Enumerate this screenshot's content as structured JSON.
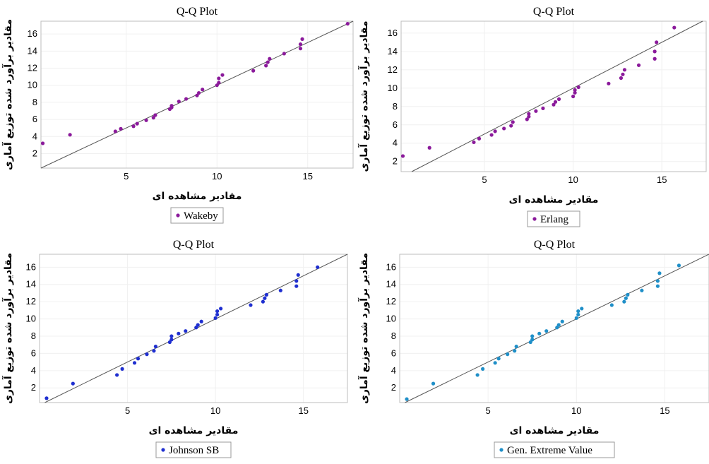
{
  "chart_data": [
    {
      "type": "scatter",
      "title": "Q-Q Plot",
      "xlabel": "مقادیر مشاهده ای",
      "ylabel": "مقادیر برآورد شده توزیع آماری",
      "xlim": [
        0.3,
        17.5
      ],
      "ylim": [
        0.3,
        17.5
      ],
      "xticks": [
        5,
        10,
        15
      ],
      "yticks": [
        2,
        4,
        6,
        8,
        10,
        12,
        14,
        16
      ],
      "legend": "bottom-center",
      "series": [
        {
          "name": "Wakeby",
          "color": "#8b1a9b",
          "x": [
            0.4,
            1.9,
            4.4,
            4.7,
            5.4,
            5.6,
            6.1,
            6.5,
            6.6,
            7.4,
            7.5,
            7.5,
            7.9,
            8.3,
            8.9,
            9.0,
            9.2,
            10.0,
            10.1,
            10.1,
            10.3,
            12.0,
            12.7,
            12.8,
            12.9,
            13.7,
            14.6,
            14.6,
            14.7,
            17.2
          ],
          "y": [
            3.2,
            4.2,
            4.6,
            4.9,
            5.2,
            5.5,
            5.9,
            6.2,
            6.5,
            7.2,
            7.4,
            7.6,
            8.1,
            8.4,
            8.8,
            9.1,
            9.5,
            10.0,
            10.3,
            10.8,
            11.2,
            11.7,
            12.3,
            12.7,
            13.1,
            13.7,
            14.3,
            14.8,
            15.4,
            17.2
          ]
        }
      ]
    },
    {
      "type": "scatter",
      "title": "Q-Q Plot",
      "xlabel": "مقادیر مشاهده ای",
      "ylabel": "مقادیر برآورد شده توزیع آماری",
      "xlim": [
        0.3,
        17.5
      ],
      "ylim": [
        0.9,
        17.3
      ],
      "xticks": [
        5,
        10,
        15
      ],
      "yticks": [
        2,
        4,
        6,
        8,
        10,
        12,
        14,
        16
      ],
      "legend": "bottom-center",
      "series": [
        {
          "name": "Erlang",
          "color": "#8b1a9b",
          "x": [
            0.4,
            1.9,
            4.4,
            4.7,
            5.4,
            5.6,
            6.1,
            6.5,
            6.6,
            7.4,
            7.5,
            7.5,
            7.9,
            8.3,
            8.9,
            9.0,
            9.2,
            10.0,
            10.1,
            10.1,
            10.3,
            12.0,
            12.7,
            12.8,
            12.9,
            13.7,
            14.6,
            14.6,
            14.7,
            15.7
          ],
          "y": [
            2.6,
            3.5,
            4.1,
            4.5,
            4.9,
            5.3,
            5.6,
            5.9,
            6.3,
            6.6,
            6.9,
            7.2,
            7.5,
            7.8,
            8.2,
            8.5,
            8.8,
            9.1,
            9.5,
            9.8,
            10.1,
            10.5,
            11.1,
            11.5,
            12.0,
            12.5,
            13.2,
            14.0,
            15.0,
            16.6
          ]
        }
      ]
    },
    {
      "type": "scatter",
      "title": "Q-Q Plot",
      "xlabel": "مقادیر مشاهده ای",
      "ylabel": "مقادیر برآورد شده توزیع آماری",
      "xlim": [
        0.0,
        17.5
      ],
      "ylim": [
        0.3,
        17.5
      ],
      "xticks": [
        5,
        10,
        15
      ],
      "yticks": [
        2,
        4,
        6,
        8,
        10,
        12,
        14,
        16
      ],
      "legend": "bottom-center",
      "series": [
        {
          "name": "Johnson SB",
          "color": "#1f2fd0",
          "x": [
            0.4,
            1.9,
            4.4,
            4.7,
            5.4,
            5.6,
            6.1,
            6.5,
            6.6,
            7.4,
            7.5,
            7.5,
            7.9,
            8.3,
            8.9,
            9.0,
            9.2,
            10.0,
            10.1,
            10.1,
            10.3,
            12.0,
            12.7,
            12.8,
            12.9,
            13.7,
            14.6,
            14.6,
            14.7,
            15.8
          ],
          "y": [
            0.8,
            2.5,
            3.5,
            4.2,
            4.9,
            5.4,
            5.9,
            6.3,
            6.8,
            7.3,
            7.6,
            8.0,
            8.3,
            8.6,
            9.0,
            9.3,
            9.7,
            10.1,
            10.5,
            10.9,
            11.2,
            11.6,
            12.0,
            12.4,
            12.8,
            13.3,
            13.8,
            14.4,
            15.1,
            16.0
          ]
        }
      ]
    },
    {
      "type": "scatter",
      "title": "Q-Q Plot",
      "xlabel": "مقادیر مشاهده ای",
      "ylabel": "مقادیر برآورد شده توزیع آماری",
      "xlim": [
        0.0,
        17.5
      ],
      "ylim": [
        0.3,
        17.5
      ],
      "xticks": [
        5,
        10,
        15
      ],
      "yticks": [
        2,
        4,
        6,
        8,
        10,
        12,
        14,
        16
      ],
      "legend": "bottom-center",
      "series": [
        {
          "name": "Gen. Extreme Value",
          "color": "#1f8fc8",
          "x": [
            0.4,
            1.9,
            4.4,
            4.7,
            5.4,
            5.6,
            6.1,
            6.5,
            6.6,
            7.4,
            7.5,
            7.5,
            7.9,
            8.3,
            8.9,
            9.0,
            9.2,
            10.0,
            10.1,
            10.1,
            10.3,
            12.0,
            12.7,
            12.8,
            12.9,
            13.7,
            14.6,
            14.6,
            14.7,
            15.8
          ],
          "y": [
            0.7,
            2.5,
            3.5,
            4.2,
            4.9,
            5.4,
            5.9,
            6.3,
            6.8,
            7.3,
            7.6,
            8.0,
            8.3,
            8.6,
            9.0,
            9.3,
            9.7,
            10.1,
            10.5,
            10.9,
            11.2,
            11.6,
            12.0,
            12.4,
            12.8,
            13.3,
            13.8,
            14.4,
            15.3,
            16.2
          ]
        }
      ]
    }
  ]
}
